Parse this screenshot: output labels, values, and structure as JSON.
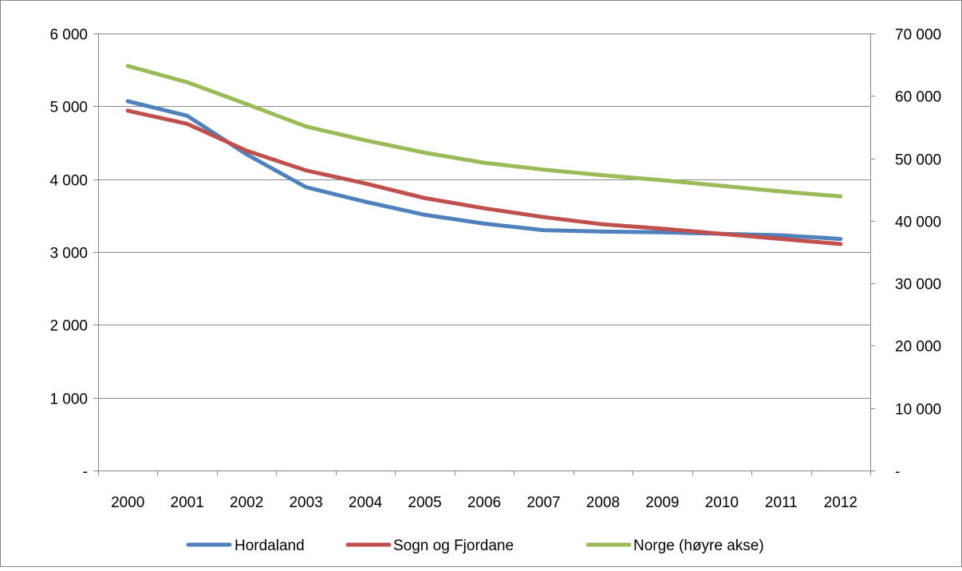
{
  "chart_data": {
    "type": "line",
    "title": "",
    "x": [
      "2000",
      "2001",
      "2002",
      "2003",
      "2004",
      "2005",
      "2006",
      "2007",
      "2008",
      "2009",
      "2010",
      "2011",
      "2012"
    ],
    "series": [
      {
        "name": "Hordaland",
        "axis": "left",
        "color": "#4F81BD",
        "values": [
          5070,
          4870,
          4340,
          3890,
          3690,
          3510,
          3390,
          3300,
          3280,
          3270,
          3250,
          3230,
          3180
        ]
      },
      {
        "name": "Sogn og Fjordane",
        "axis": "left",
        "color": "#C0504D",
        "values": [
          4940,
          4760,
          4390,
          4120,
          3940,
          3740,
          3600,
          3480,
          3380,
          3320,
          3250,
          3180,
          3110
        ]
      },
      {
        "name": "Norge (høyre akse)",
        "axis": "right",
        "color": "#9BBB59",
        "values": [
          64800,
          62200,
          58700,
          55100,
          52900,
          50900,
          49300,
          48200,
          47300,
          46500,
          45600,
          44700,
          43900
        ]
      }
    ],
    "y_left": {
      "ylim": [
        0,
        6000
      ],
      "ticks": [
        0,
        1000,
        2000,
        3000,
        4000,
        5000,
        6000
      ],
      "tick_labels": [
        "-",
        "1 000",
        "2 000",
        "3 000",
        "4 000",
        "5 000",
        "6 000"
      ]
    },
    "y_right": {
      "ylim": [
        0,
        70000
      ],
      "ticks": [
        0,
        10000,
        20000,
        30000,
        40000,
        50000,
        60000,
        70000
      ],
      "tick_labels": [
        "-",
        "10 000",
        "20 000",
        "30 000",
        "40 000",
        "50 000",
        "60 000",
        "70 000"
      ]
    },
    "grid": true,
    "gridline_color": "#868686",
    "legend_position": "bottom"
  }
}
